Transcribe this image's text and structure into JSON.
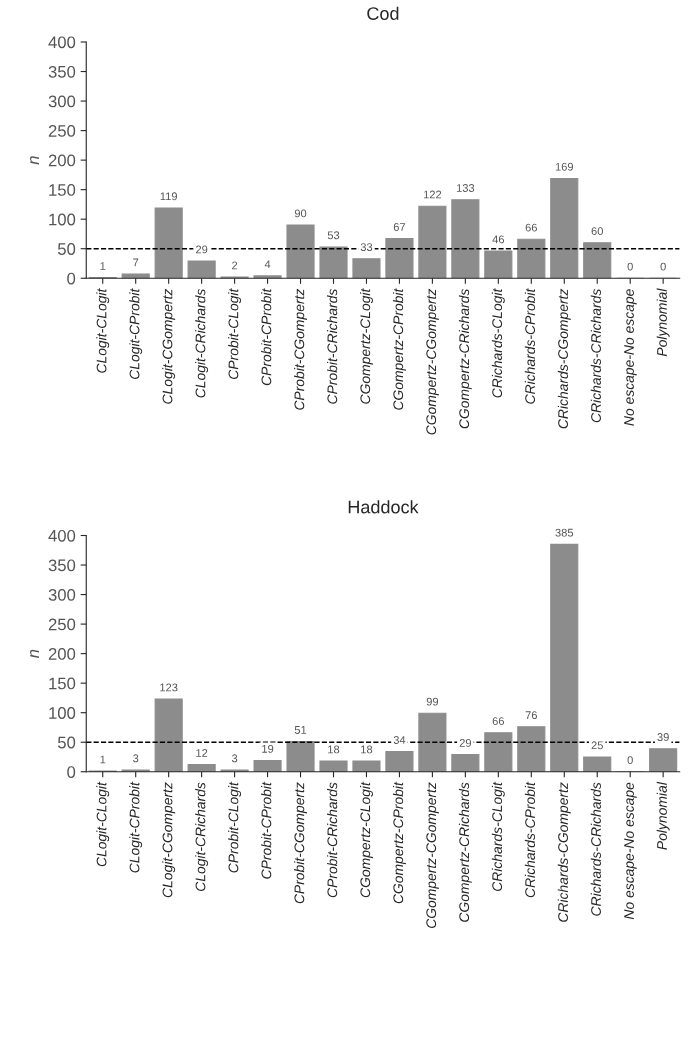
{
  "chart_data": [
    {
      "type": "bar",
      "title": "Cod",
      "ylabel": "n",
      "categories": [
        "CLogit-CLogit",
        "CLogit-CProbit",
        "CLogit-CGompertz",
        "CLogit-CRichards",
        "CProbit-CLogit",
        "CProbit-CProbit",
        "CProbit-CGompertz",
        "CProbit-CRichards",
        "CGompertz-CLogit",
        "CGompertz-CProbit",
        "CGompertz-CGompertz",
        "CGompertz-CRichards",
        "CRichards-CLogit",
        "CRichards-CProbit",
        "CRichards-CGompertz",
        "CRichards-CRichards",
        "No escape-No escape",
        "Polynomial"
      ],
      "values": [
        1,
        7,
        119,
        29,
        2,
        4,
        90,
        53,
        33,
        67,
        122,
        133,
        46,
        66,
        169,
        60,
        0,
        0
      ],
      "color": "#8c8c8c",
      "ylim": [
        0,
        400
      ],
      "yticks": [
        0,
        50,
        100,
        150,
        200,
        250,
        300,
        350,
        400
      ],
      "data_labels": true,
      "ref_lines": [
        {
          "axis": "y",
          "value": 50,
          "line_style": "dashed",
          "color": "#000000"
        }
      ]
    },
    {
      "type": "bar",
      "title": "Haddock",
      "ylabel": "n",
      "categories": [
        "CLogit-CLogit",
        "CLogit-CProbit",
        "CLogit-CGompertz",
        "CLogit-CRichards",
        "CProbit-CLogit",
        "CProbit-CProbit",
        "CProbit-CGompertz",
        "CProbit-CRichards",
        "CGompertz-CLogit",
        "CGompertz-CProbit",
        "CGompertz-CGompertz",
        "CGompertz-CRichards",
        "CRichards-CLogit",
        "CRichards-CProbit",
        "CRichards-CGompertz",
        "CRichards-CRichards",
        "No escape-No escape",
        "Polynomial"
      ],
      "values": [
        1,
        3,
        123,
        12,
        3,
        19,
        51,
        18,
        18,
        34,
        99,
        29,
        66,
        76,
        385,
        25,
        0,
        39
      ],
      "color": "#8c8c8c",
      "ylim": [
        0,
        400
      ],
      "yticks": [
        0,
        50,
        100,
        150,
        200,
        250,
        300,
        350,
        400
      ],
      "data_labels": true,
      "ref_lines": [
        {
          "axis": "y",
          "value": 50,
          "line_style": "dashed",
          "color": "#000000"
        }
      ]
    }
  ]
}
